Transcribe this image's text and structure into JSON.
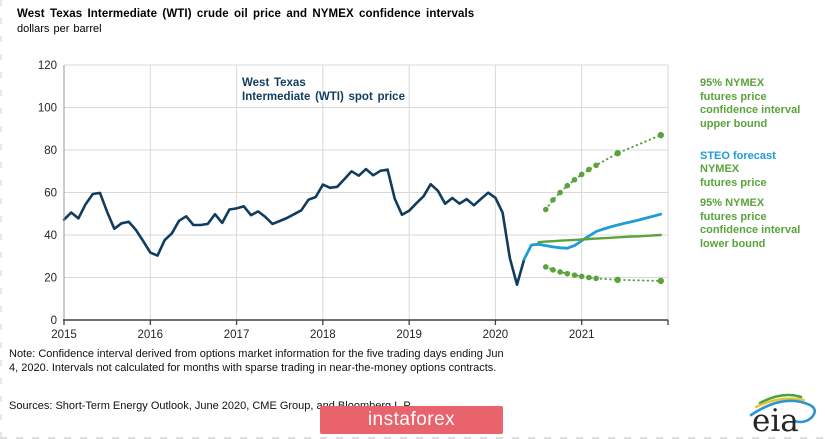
{
  "header": {
    "title": "West Texas Intermediate (WTI) crude oil price and NYMEX confidence intervals",
    "subtitle": "dollars per barrel"
  },
  "colors": {
    "navy": "#123c5d",
    "blue": "#1f9cd8",
    "green": "#5ba33c",
    "gridline": "#d9d9d9",
    "axis": "#404040",
    "axis_side": "#9a9a9a",
    "tick_text": "#262626",
    "watermark_bg": "#e8636b",
    "watermark_text": "#ffffff"
  },
  "legend": {
    "upper_bound": {
      "label": "95% NYMEX\nfutures price\nconfidence interval\nupper bound"
    },
    "steo_forecast": {
      "label": "STEO forecast"
    },
    "nymex_futures": {
      "label": "NYMEX\nfutures price"
    },
    "lower_bound": {
      "label": "95% NYMEX\nfutures price\nconfidence interval\nlower bound"
    }
  },
  "note": "Note: Confidence interval derived from options market information for the five trading days ending Jun\n4, 2020. Intervals not calculated for months with sparse trading in near-the-money options contracts.",
  "sources": "Sources: Short-Term Energy Outlook, June 2020, CME Group, and Bloomberg L.P.",
  "watermark": "instaforex",
  "logo_text": "eia",
  "chart_data": {
    "type": "line",
    "title": "West Texas Intermediate (WTI) crude oil price and NYMEX confidence intervals",
    "xlabel": "",
    "ylabel": "dollars per barrel",
    "ylim": [
      0,
      120
    ],
    "yticks": [
      0,
      20,
      40,
      60,
      80,
      100,
      120
    ],
    "x_axis": {
      "start_year": 2015,
      "end_year": 2022,
      "tick_years": [
        2015,
        2016,
        2017,
        2018,
        2019,
        2020,
        2021
      ],
      "unit": "month"
    },
    "grid": true,
    "legend_position": "right",
    "annotation": "West Texas\nIntermediate (WTI) spot price",
    "series": [
      {
        "name": "West Texas Intermediate (WTI) spot price",
        "style": "solid",
        "color_key": "navy",
        "width": 2.6,
        "start_month": 0,
        "values": [
          47.2,
          50.6,
          47.8,
          54.5,
          59.3,
          59.8,
          50.9,
          42.9,
          45.5,
          46.2,
          42.4,
          37.2,
          31.7,
          30.3,
          37.6,
          40.8,
          46.7,
          48.8,
          44.7,
          44.7,
          45.2,
          49.8,
          45.7,
          52.0,
          52.5,
          53.5,
          49.3,
          51.1,
          48.5,
          45.2,
          46.6,
          48.0,
          49.8,
          51.6,
          56.6,
          57.9,
          63.7,
          62.2,
          62.7,
          66.3,
          70.0,
          67.9,
          71.0,
          68.1,
          70.2,
          70.8,
          57.0,
          49.5,
          51.4,
          54.9,
          58.2,
          63.9,
          60.8,
          54.7,
          57.4,
          54.8,
          56.9,
          54.0,
          57.0,
          59.9,
          57.5,
          50.5,
          29.2,
          16.6,
          28.6
        ]
      },
      {
        "name": "STEO forecast",
        "style": "solid",
        "color_key": "blue",
        "width": 2.8,
        "start_month": 64,
        "values": [
          28.6,
          35.3,
          35.6,
          35.0,
          34.4,
          34.0,
          33.8,
          35.0,
          37.3,
          39.5,
          41.6,
          42.8,
          43.8,
          44.7,
          45.5,
          46.3,
          47.1,
          48.0,
          48.9,
          49.8
        ]
      },
      {
        "name": "NYMEX futures price",
        "style": "solid",
        "color_key": "green",
        "width": 2.4,
        "start_month": 66,
        "values": [
          36.6,
          36.9,
          37.1,
          37.3,
          37.5,
          37.7,
          37.9,
          38.1,
          38.3,
          38.5,
          38.7,
          38.9,
          39.1,
          39.3,
          39.4,
          39.6,
          39.8,
          40.0
        ]
      },
      {
        "name": "95% NYMEX futures price confidence interval upper bound",
        "style": "dotted",
        "color_key": "green",
        "width": 2.0,
        "points": [
          [
            67,
            52.0
          ],
          [
            68,
            56.5
          ],
          [
            69,
            60.0
          ],
          [
            70,
            63.2
          ],
          [
            71,
            66.0
          ],
          [
            72,
            68.5
          ],
          [
            73,
            70.8
          ],
          [
            74,
            72.8
          ],
          [
            77,
            78.5
          ],
          [
            83,
            87.0
          ]
        ],
        "marker_months": [
          67,
          68,
          69,
          70,
          71,
          72,
          73,
          74,
          77,
          83
        ]
      },
      {
        "name": "95% NYMEX futures price confidence interval lower bound",
        "style": "dotted",
        "color_key": "green",
        "width": 2.0,
        "points": [
          [
            67,
            25.0
          ],
          [
            68,
            23.6
          ],
          [
            69,
            22.6
          ],
          [
            70,
            21.8
          ],
          [
            71,
            21.1
          ],
          [
            72,
            20.5
          ],
          [
            73,
            20.0
          ],
          [
            74,
            19.6
          ],
          [
            77,
            18.9
          ],
          [
            83,
            18.4
          ]
        ],
        "marker_months": [
          67,
          68,
          69,
          70,
          71,
          72,
          73,
          74,
          77,
          83
        ]
      }
    ]
  }
}
